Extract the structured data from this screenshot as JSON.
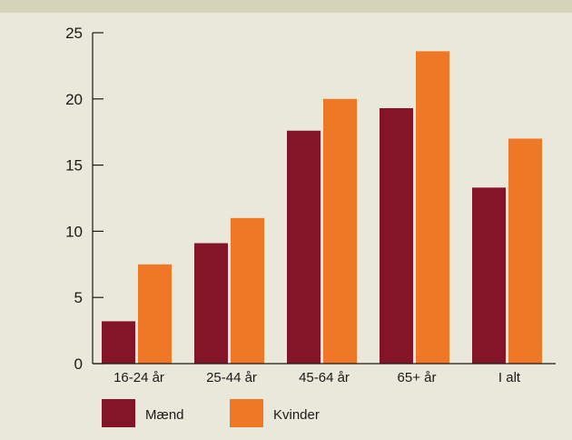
{
  "colors": {
    "background": "#e9e8da",
    "top_band": "#d6d3bb",
    "maend": "#841427",
    "kvinder": "#ef7827",
    "axis": "#1a1a1a"
  },
  "chart_data": {
    "type": "bar",
    "title": "",
    "xlabel": "",
    "ylabel": "",
    "categories": [
      "16-24 år",
      "25-44 år",
      "45-64 år",
      "65+ år",
      "I alt"
    ],
    "series": [
      {
        "name": "Mænd",
        "values": [
          3.2,
          9.1,
          17.6,
          19.3,
          13.3
        ],
        "color": "#841427"
      },
      {
        "name": "Kvinder",
        "values": [
          7.5,
          11.0,
          20.0,
          23.6,
          17.0
        ],
        "color": "#ef7827"
      }
    ],
    "ylim": [
      0,
      25
    ],
    "yticks": [
      0,
      5,
      10,
      15,
      20,
      25
    ],
    "grid": false,
    "legend": "bottom-left"
  }
}
